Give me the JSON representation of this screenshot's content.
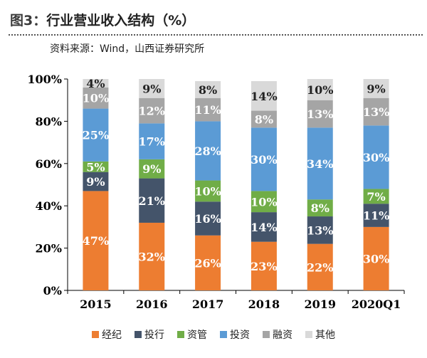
{
  "header": {
    "figure_label": "图3：",
    "title": "行业营业收入结构（%）",
    "source": "资料来源：Wind，山西证券研究所"
  },
  "chart_data": {
    "type": "bar",
    "stacked": true,
    "categories": [
      "2015",
      "2016",
      "2017",
      "2018",
      "2019",
      "2020Q1"
    ],
    "ylim": [
      0,
      100
    ],
    "yticks": [
      0,
      20,
      40,
      60,
      80,
      100
    ],
    "ytick_labels": [
      "0%",
      "20%",
      "40%",
      "60%",
      "80%",
      "100%"
    ],
    "legend_position": "bottom",
    "series": [
      {
        "name": "经纪",
        "color": "#ed7d31",
        "values": [
          47,
          32,
          26,
          23,
          22,
          30
        ]
      },
      {
        "name": "投行",
        "color": "#44546a",
        "values": [
          9,
          21,
          16,
          14,
          13,
          11
        ]
      },
      {
        "name": "资管",
        "color": "#70ad47",
        "values": [
          5,
          9,
          10,
          10,
          8,
          7
        ]
      },
      {
        "name": "投资",
        "color": "#5b9bd5",
        "values": [
          25,
          17,
          28,
          30,
          34,
          30
        ]
      },
      {
        "name": "融资",
        "color": "#a5a5a5",
        "values": [
          10,
          12,
          11,
          8,
          13,
          13
        ]
      },
      {
        "name": "其他",
        "color": "#d9d9d9",
        "values": [
          4,
          9,
          8,
          14,
          10,
          9
        ]
      }
    ]
  }
}
